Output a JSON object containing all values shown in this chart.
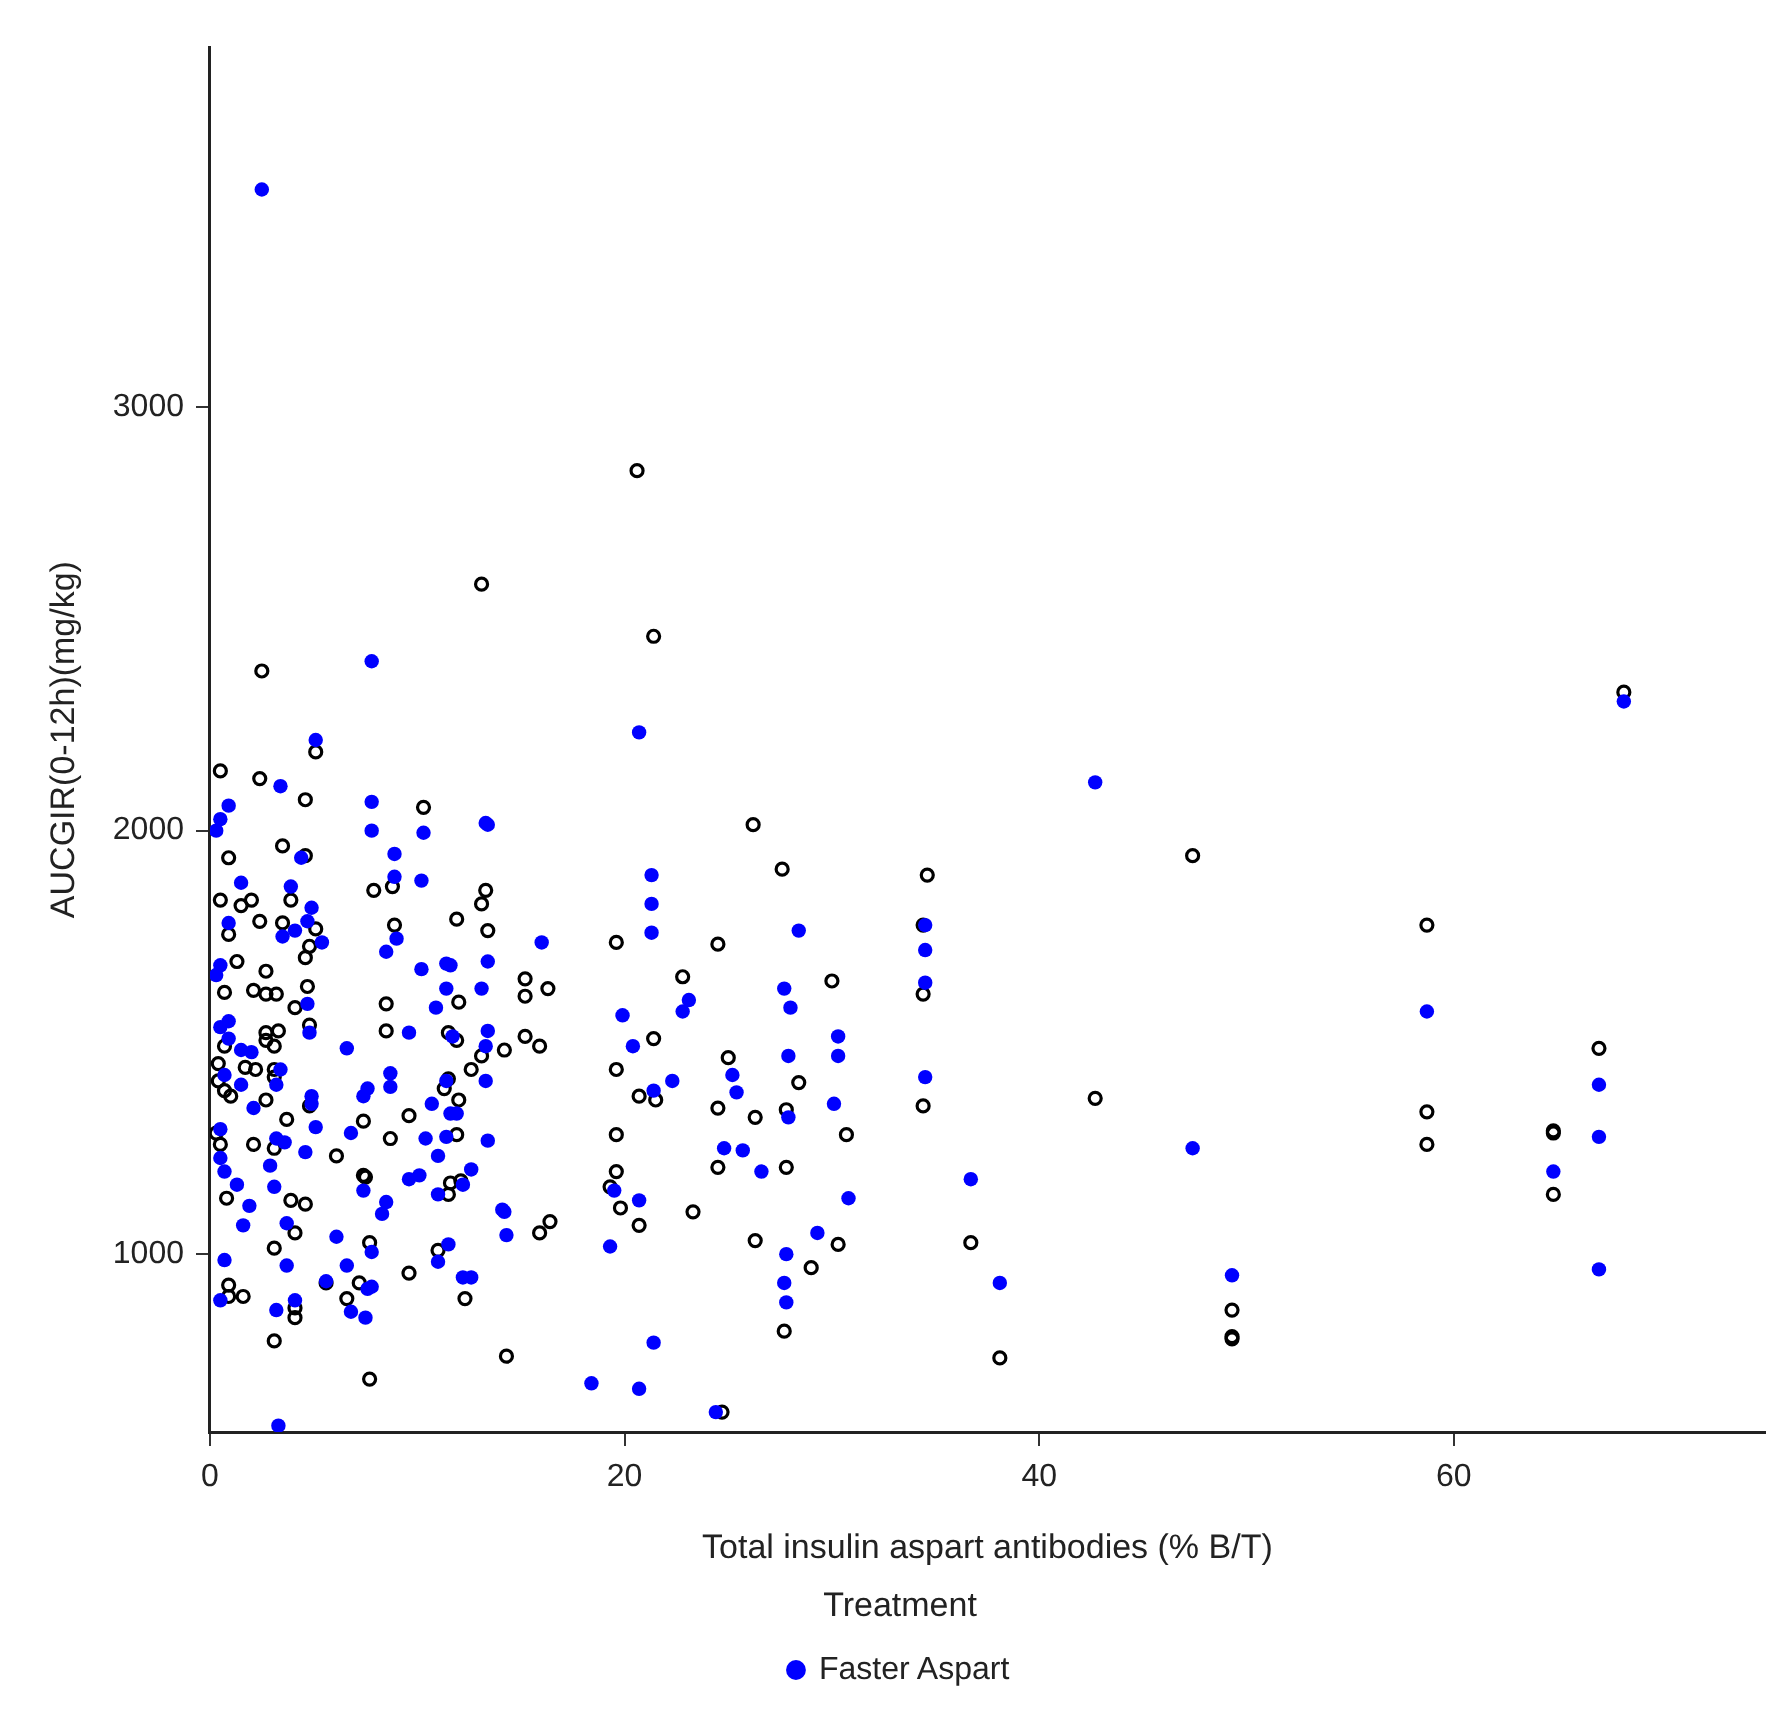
{
  "chart_data": {
    "type": "scatter",
    "xlabel": "Total insulin aspart antibodies (% B/T)",
    "ylabel": "AUCGIR(0-12h)(mg/kg)",
    "legend_title": "Treatment",
    "legend": "bottom",
    "marker": "circle",
    "grid": false,
    "xlim": [
      0,
      75
    ],
    "xticks": [
      0,
      20,
      40,
      60
    ],
    "ylim": [
      580,
      3850
    ],
    "yticks": [
      1000,
      2000,
      3000
    ],
    "series": [
      {
        "name": "Faster Aspart",
        "color": "#0000ff",
        "x": [
          2.5,
          7.8,
          20.7,
          42.7,
          68.2,
          5.1,
          13.3,
          7.8,
          0.3,
          0.9,
          0.5,
          3.4,
          8.9,
          10.2,
          21.3,
          21.3,
          21.3,
          16,
          4.4,
          1.5,
          4.9,
          5.4,
          0.3,
          0.5,
          0.7,
          1.5,
          3.2,
          3.4,
          4.9,
          6.8,
          10.2,
          11.4,
          11.4,
          10.9,
          13.1,
          13.3,
          13.3,
          11.4,
          10.7,
          10.4,
          10.1,
          8.3,
          7.8,
          7.8,
          6.8,
          14.1,
          14.3,
          12.6,
          19.9,
          20.4,
          19.5,
          20.7,
          19.3,
          22.3,
          21.4,
          22.8,
          23.1,
          25.2,
          25.4,
          24.8,
          26.6,
          27.7,
          28,
          27.9,
          27.9,
          28.4,
          30.3,
          30.3,
          30.1,
          30.8,
          27.7,
          27.8,
          27.8,
          29.3,
          34.5,
          34.5,
          34.5,
          34.5,
          36.7,
          38.1,
          25.7,
          18.4,
          20.7,
          21.4,
          24.4,
          47.4,
          49.3,
          58.7,
          67,
          67,
          67,
          64.8,
          7.8,
          10.3,
          13.4,
          8.9,
          3.9,
          0.9,
          3.5,
          4.7,
          4.1,
          9,
          8.5,
          0.5,
          11.6,
          13.4,
          4.7,
          0.9,
          0.9,
          1.5,
          2,
          4.8,
          6.6,
          9.6,
          11.7,
          13.4,
          8.7,
          8.7,
          7.6,
          7.4,
          2.1,
          4.9,
          5.1,
          11.6,
          11.9,
          11.4,
          13.4,
          0.5,
          3.2,
          3.6,
          2.9,
          0.5,
          0.7,
          1.3,
          3.1,
          4.6,
          11,
          12.6,
          12.2,
          9.6,
          11,
          8.5,
          7.4,
          1.9,
          1.6,
          3.7,
          14.2,
          6.1,
          0.7,
          3.7,
          6.6,
          11.5,
          11,
          12.2,
          5.6,
          7.6,
          0.5,
          4.1,
          3.2,
          7.5,
          3.3
        ],
        "values": [
          3514,
          2400,
          2232,
          2114,
          2305,
          2214,
          2018,
          2000,
          2000,
          2059,
          2027,
          2105,
          1945,
          1882,
          1895,
          1827,
          1759,
          1736,
          1936,
          1877,
          1818,
          1736,
          1659,
          1536,
          1423,
          1400,
          1400,
          1436,
          1373,
          1286,
          1673,
          1686,
          1627,
          1582,
          1627,
          1491,
          1409,
          1409,
          1355,
          1273,
          1186,
          1095,
          1005,
          923,
          864,
          1105,
          1045,
          945,
          1564,
          1491,
          1150,
          1127,
          1018,
          1409,
          1386,
          1573,
          1600,
          1423,
          1382,
          1250,
          1195,
          1627,
          1582,
          1468,
          1323,
          1764,
          1514,
          1468,
          1355,
          1132,
          932,
          1000,
          886,
          1050,
          1777,
          1718,
          1641,
          1418,
          1177,
          932,
          1245,
          695,
          682,
          791,
          627,
          1250,
          950,
          1573,
          1400,
          1277,
          964,
          1195,
          2068,
          1995,
          2014,
          1891,
          1868,
          1782,
          1750,
          1786,
          1764,
          1745,
          1714,
          1682,
          1682,
          1691,
          1591,
          1550,
          1509,
          1482,
          1477,
          1523,
          1486,
          1523,
          1514,
          1527,
          1427,
          1395,
          1391,
          1373,
          1345,
          1355,
          1300,
          1332,
          1332,
          1277,
          1268,
          1295,
          1273,
          1264,
          1209,
          1227,
          1195,
          1164,
          1159,
          1241,
          1232,
          1200,
          1164,
          1177,
          1141,
          1123,
          1150,
          1114,
          1068,
          1073,
          1100,
          1041,
          986,
          973,
          973,
          1023,
          982,
          945,
          936,
          918,
          891,
          891,
          868,
          850,
          595
        ]
      },
      {
        "color": "#000000",
        "x": [
          2.5,
          5.1,
          0.5,
          2.4,
          4.6,
          10.3,
          0.9,
          3.5,
          4.6,
          7.9,
          8.8,
          8.9,
          13.3,
          13.1,
          13.4,
          11.9,
          0.5,
          1.5,
          2,
          3.9,
          2.4,
          3.5,
          5.1,
          0.9,
          4.8,
          4.6,
          1.3,
          2.7,
          0.7,
          2.1,
          2.7,
          3.2,
          4.7,
          4.1,
          8.5,
          12,
          2.7,
          3.3,
          4.8,
          2.7,
          0.7,
          3.1,
          8.5,
          11.5,
          11.9,
          0.4,
          1.7,
          2.2,
          3.1,
          3.1,
          12.6,
          13.1,
          14.2,
          0.4,
          0.7,
          1,
          11.5,
          11.3,
          12,
          4.8,
          2.7,
          3.7,
          7.4,
          8.7,
          9.6,
          11.9,
          0.3,
          0.5,
          2.1,
          3.1,
          6.1,
          7.4,
          7.5,
          11.6,
          12.1,
          11.5,
          0.8,
          3.9,
          4.6,
          4.1,
          7.7,
          3.1,
          9.6,
          11,
          5.6,
          7.2,
          6.6,
          12.3,
          0.9,
          0.9,
          1.6,
          4.1,
          4.1,
          3.1,
          7.7,
          14.3,
          20.6,
          21.4,
          13.1,
          26.2,
          27.6,
          34.6,
          34.4,
          34.4,
          34.4,
          19.6,
          24.5,
          30,
          22.8,
          15.2,
          15.2,
          16.3,
          15.2,
          15.9,
          19.6,
          21.4,
          20.7,
          21.5,
          25,
          28.4,
          24.5,
          26.3,
          27.8,
          30.7,
          19.6,
          19.6,
          19.3,
          19.8,
          20.7,
          23.3,
          24.5,
          27.8,
          26.3,
          30.3,
          29,
          27.7,
          16.4,
          15.9,
          24.7,
          42.7,
          47.4,
          58.7,
          58.7,
          58.7,
          67,
          64.8,
          64.8,
          64.8,
          49.3,
          49.3,
          49.3,
          36.7,
          38.1,
          68.2
        ],
        "values": [
          2377,
          2186,
          2141,
          2123,
          2073,
          2055,
          1936,
          1964,
          1941,
          1859,
          1868,
          1777,
          1859,
          1827,
          1764,
          1791,
          1836,
          1823,
          1836,
          1836,
          1786,
          1782,
          1768,
          1755,
          1727,
          1700,
          1691,
          1668,
          1618,
          1623,
          1614,
          1614,
          1632,
          1582,
          1591,
          1595,
          1523,
          1527,
          1541,
          1505,
          1491,
          1491,
          1527,
          1523,
          1505,
          1450,
          1441,
          1436,
          1436,
          1418,
          1436,
          1468,
          1482,
          1409,
          1386,
          1373,
          1414,
          1391,
          1364,
          1350,
          1364,
          1318,
          1314,
          1273,
          1327,
          1282,
          1286,
          1259,
          1259,
          1250,
          1232,
          1186,
          1182,
          1168,
          1173,
          1141,
          1132,
          1127,
          1118,
          1050,
          1027,
          1014,
          955,
          1009,
          932,
          932,
          895,
          895,
          927,
          900,
          900,
          873,
          850,
          795,
          705,
          759,
          2850,
          2459,
          2582,
          2014,
          1909,
          1895,
          1777,
          1614,
          1350,
          1736,
          1732,
          1645,
          1655,
          1650,
          1609,
          1627,
          1514,
          1491,
          1436,
          1509,
          1373,
          1364,
          1464,
          1405,
          1345,
          1323,
          1341,
          1282,
          1282,
          1195,
          1159,
          1109,
          1068,
          1100,
          1205,
          1205,
          1032,
          1023,
          968,
          818,
          1077,
          1050,
          627,
          1368,
          1941,
          1777,
          1336,
          1259,
          1486,
          1291,
          1286,
          1141,
          868,
          805,
          800,
          1027,
          755,
          2327
        ]
      }
    ]
  }
}
